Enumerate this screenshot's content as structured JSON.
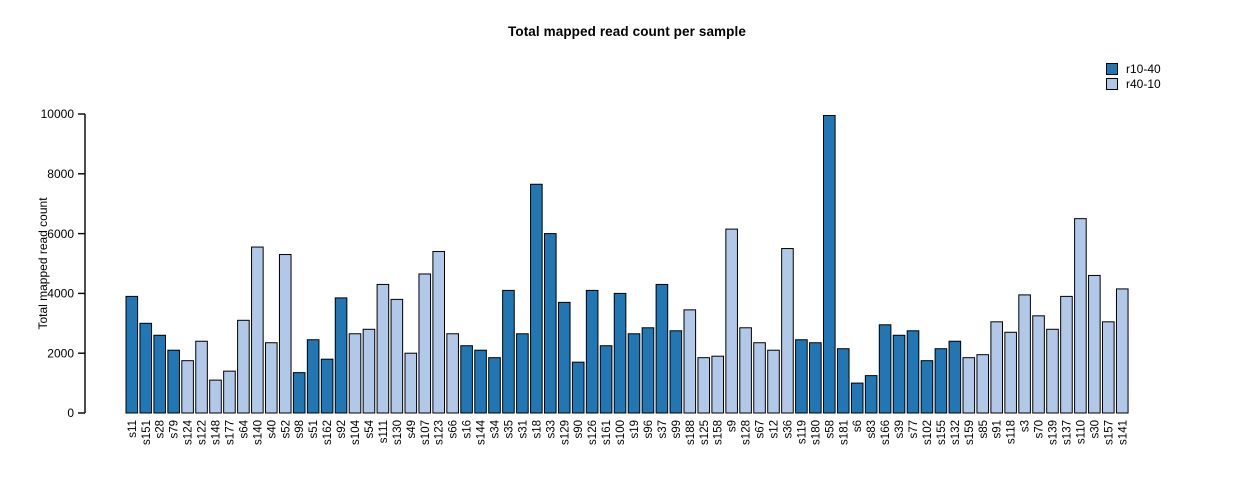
{
  "chart_data": {
    "type": "bar",
    "title": "Total mapped read count per sample",
    "xlabel": "",
    "ylabel": "Total mapped read count",
    "ylim": [
      0,
      10000
    ],
    "yticks": [
      0,
      2000,
      4000,
      6000,
      8000,
      10000
    ],
    "grid": false,
    "legend_position": "top-right",
    "legend": [
      {
        "label": "r10-40",
        "color": "#2177b4"
      },
      {
        "label": "r40-10",
        "color": "#b2c8e8"
      }
    ],
    "bar_border_color": "#000000",
    "samples": [
      {
        "label": "s11",
        "value": 3900,
        "group": "r10-40"
      },
      {
        "label": "s151",
        "value": 3000,
        "group": "r10-40"
      },
      {
        "label": "s28",
        "value": 2600,
        "group": "r10-40"
      },
      {
        "label": "s79",
        "value": 2100,
        "group": "r10-40"
      },
      {
        "label": "s124",
        "value": 1750,
        "group": "r40-10"
      },
      {
        "label": "s122",
        "value": 2400,
        "group": "r40-10"
      },
      {
        "label": "s148",
        "value": 1100,
        "group": "r40-10"
      },
      {
        "label": "s177",
        "value": 1400,
        "group": "r40-10"
      },
      {
        "label": "s64",
        "value": 3100,
        "group": "r40-10"
      },
      {
        "label": "s140",
        "value": 5550,
        "group": "r40-10"
      },
      {
        "label": "s40",
        "value": 2350,
        "group": "r40-10"
      },
      {
        "label": "s52",
        "value": 5300,
        "group": "r40-10"
      },
      {
        "label": "s98",
        "value": 1350,
        "group": "r10-40"
      },
      {
        "label": "s51",
        "value": 2450,
        "group": "r10-40"
      },
      {
        "label": "s162",
        "value": 1800,
        "group": "r10-40"
      },
      {
        "label": "s92",
        "value": 3850,
        "group": "r10-40"
      },
      {
        "label": "s104",
        "value": 2650,
        "group": "r40-10"
      },
      {
        "label": "s54",
        "value": 2800,
        "group": "r40-10"
      },
      {
        "label": "s111",
        "value": 4300,
        "group": "r40-10"
      },
      {
        "label": "s130",
        "value": 3800,
        "group": "r40-10"
      },
      {
        "label": "s49",
        "value": 2000,
        "group": "r40-10"
      },
      {
        "label": "s107",
        "value": 4650,
        "group": "r40-10"
      },
      {
        "label": "s123",
        "value": 5400,
        "group": "r40-10"
      },
      {
        "label": "s66",
        "value": 2650,
        "group": "r40-10"
      },
      {
        "label": "s16",
        "value": 2250,
        "group": "r10-40"
      },
      {
        "label": "s144",
        "value": 2100,
        "group": "r10-40"
      },
      {
        "label": "s34",
        "value": 1850,
        "group": "r10-40"
      },
      {
        "label": "s35",
        "value": 4100,
        "group": "r10-40"
      },
      {
        "label": "s31",
        "value": 2650,
        "group": "r10-40"
      },
      {
        "label": "s18",
        "value": 7650,
        "group": "r10-40"
      },
      {
        "label": "s33",
        "value": 6000,
        "group": "r10-40"
      },
      {
        "label": "s129",
        "value": 3700,
        "group": "r10-40"
      },
      {
        "label": "s90",
        "value": 1700,
        "group": "r10-40"
      },
      {
        "label": "s126",
        "value": 4100,
        "group": "r10-40"
      },
      {
        "label": "s161",
        "value": 2250,
        "group": "r10-40"
      },
      {
        "label": "s100",
        "value": 4000,
        "group": "r10-40"
      },
      {
        "label": "s19",
        "value": 2650,
        "group": "r10-40"
      },
      {
        "label": "s96",
        "value": 2850,
        "group": "r10-40"
      },
      {
        "label": "s37",
        "value": 4300,
        "group": "r10-40"
      },
      {
        "label": "s99",
        "value": 2750,
        "group": "r10-40"
      },
      {
        "label": "s188",
        "value": 3450,
        "group": "r40-10"
      },
      {
        "label": "s125",
        "value": 1850,
        "group": "r40-10"
      },
      {
        "label": "s158",
        "value": 1900,
        "group": "r40-10"
      },
      {
        "label": "s9",
        "value": 6150,
        "group": "r40-10"
      },
      {
        "label": "s128",
        "value": 2850,
        "group": "r40-10"
      },
      {
        "label": "s67",
        "value": 2350,
        "group": "r40-10"
      },
      {
        "label": "s12",
        "value": 2100,
        "group": "r40-10"
      },
      {
        "label": "s36",
        "value": 5500,
        "group": "r40-10"
      },
      {
        "label": "s119",
        "value": 2450,
        "group": "r10-40"
      },
      {
        "label": "s180",
        "value": 2350,
        "group": "r10-40"
      },
      {
        "label": "s58",
        "value": 9950,
        "group": "r10-40"
      },
      {
        "label": "s181",
        "value": 2150,
        "group": "r10-40"
      },
      {
        "label": "s6",
        "value": 1000,
        "group": "r10-40"
      },
      {
        "label": "s83",
        "value": 1250,
        "group": "r10-40"
      },
      {
        "label": "s166",
        "value": 2950,
        "group": "r10-40"
      },
      {
        "label": "s39",
        "value": 2600,
        "group": "r10-40"
      },
      {
        "label": "s77",
        "value": 2750,
        "group": "r10-40"
      },
      {
        "label": "s102",
        "value": 1750,
        "group": "r10-40"
      },
      {
        "label": "s155",
        "value": 2150,
        "group": "r10-40"
      },
      {
        "label": "s132",
        "value": 2400,
        "group": "r10-40"
      },
      {
        "label": "s159",
        "value": 1850,
        "group": "r40-10"
      },
      {
        "label": "s85",
        "value": 1950,
        "group": "r40-10"
      },
      {
        "label": "s91",
        "value": 3050,
        "group": "r40-10"
      },
      {
        "label": "s118",
        "value": 2700,
        "group": "r40-10"
      },
      {
        "label": "s3",
        "value": 3950,
        "group": "r40-10"
      },
      {
        "label": "s70",
        "value": 3250,
        "group": "r40-10"
      },
      {
        "label": "s139",
        "value": 2800,
        "group": "r40-10"
      },
      {
        "label": "s137",
        "value": 3900,
        "group": "r40-10"
      },
      {
        "label": "s110",
        "value": 6500,
        "group": "r40-10"
      },
      {
        "label": "s30",
        "value": 4600,
        "group": "r40-10"
      },
      {
        "label": "s157",
        "value": 3050,
        "group": "r40-10"
      },
      {
        "label": "s141",
        "value": 4150,
        "group": "r40-10"
      }
    ]
  }
}
